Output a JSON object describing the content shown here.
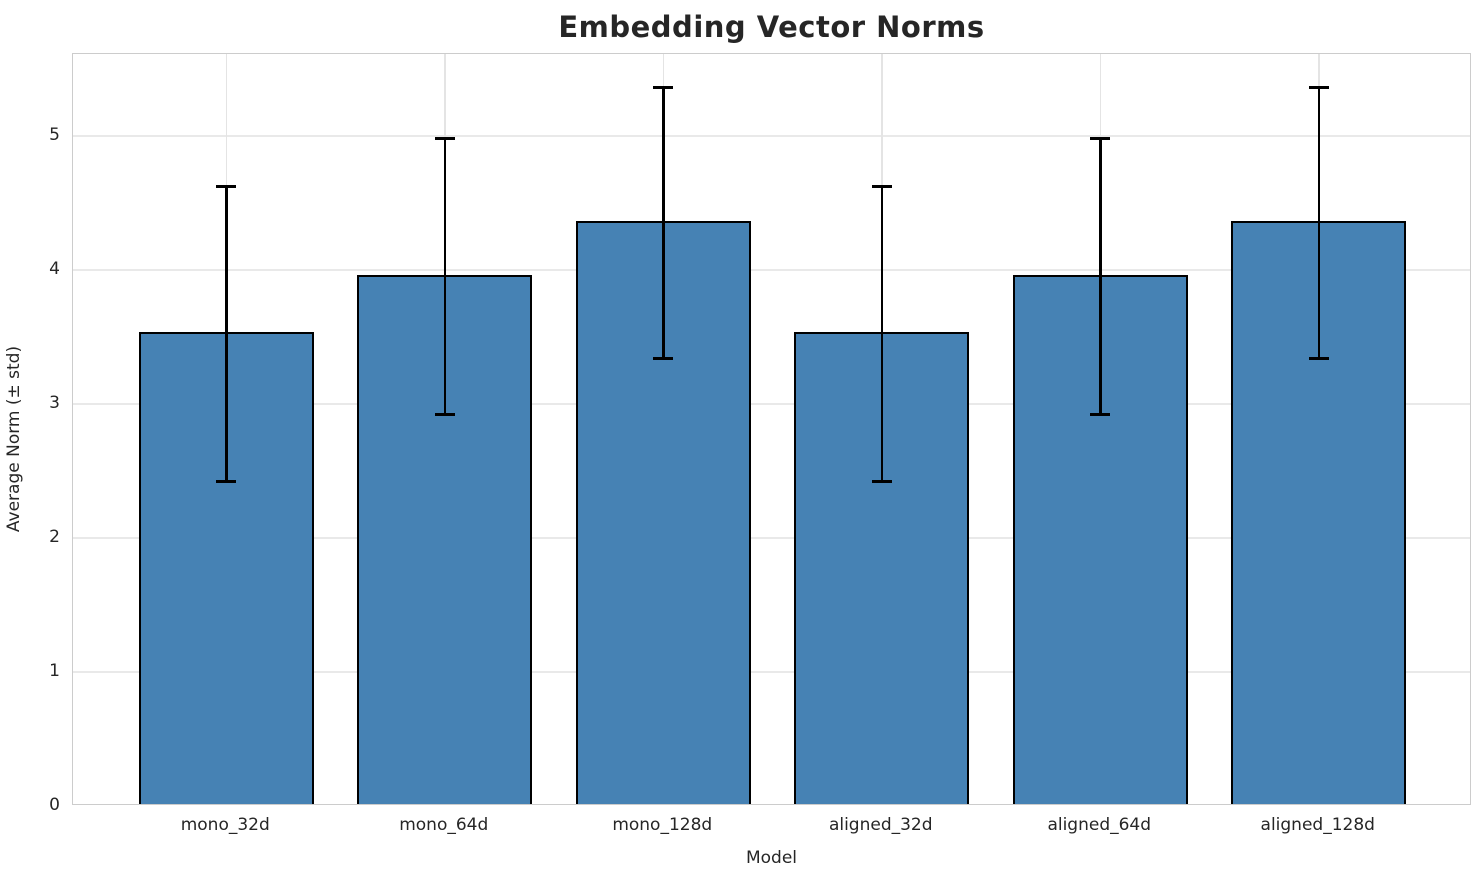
{
  "chart_data": {
    "type": "bar",
    "title": "Embedding Vector Norms",
    "xlabel": "Model",
    "ylabel": "Average Norm (± std)",
    "categories": [
      "mono_32d",
      "mono_64d",
      "mono_128d",
      "aligned_32d",
      "aligned_64d",
      "aligned_128d"
    ],
    "series": [
      {
        "name": "Average Norm",
        "values": [
          3.52,
          3.95,
          4.35,
          3.52,
          3.95,
          4.35
        ],
        "errors": [
          1.1,
          1.03,
          1.01,
          1.1,
          1.03,
          1.01
        ]
      }
    ],
    "ylim": [
      0,
      5.61
    ],
    "yticks": [
      0,
      1,
      2,
      3,
      4,
      5
    ],
    "grid": true,
    "legend": "none",
    "colors": {
      "bar_fill": "#4682B4",
      "bar_edge": "#000000",
      "error_bar": "#000000",
      "grid_h": "#e9e9e9",
      "grid_v": "#e4e4e4",
      "spine": "#cccccc",
      "text": "#262626",
      "background": "#ffffff"
    }
  }
}
